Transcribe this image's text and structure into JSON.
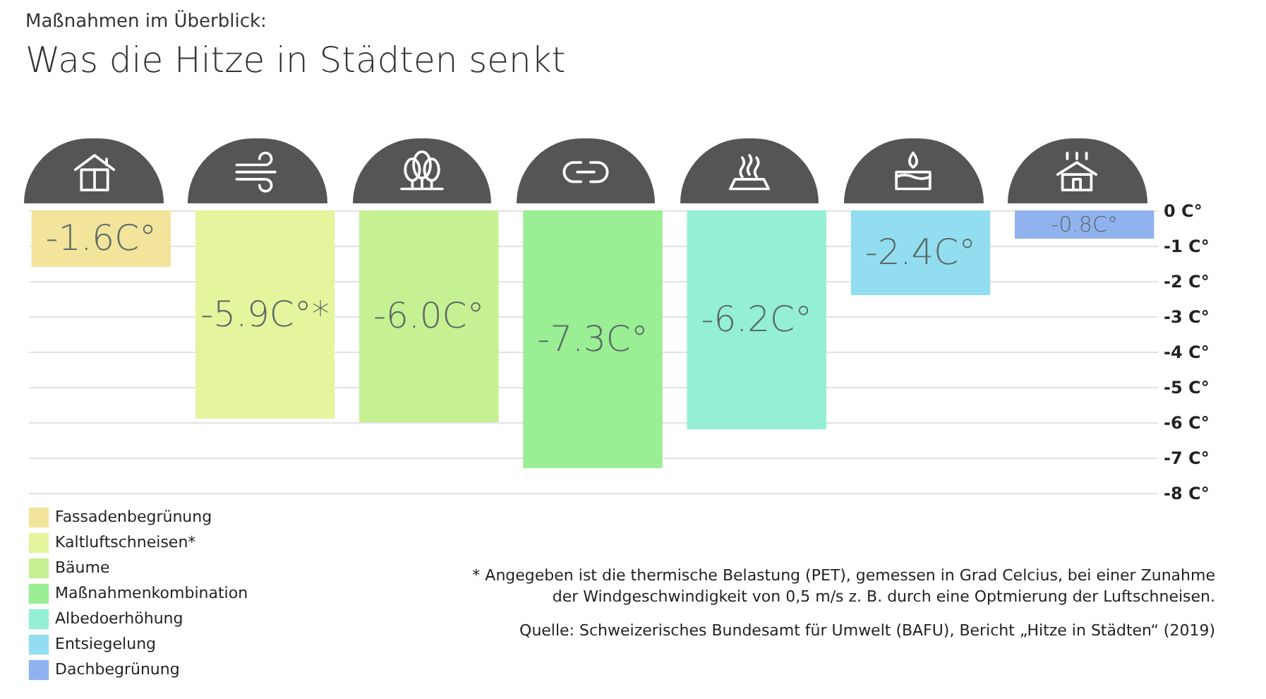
{
  "chart_data": {
    "type": "bar",
    "subtitle": "Maßnahmen im Überblick:",
    "title": "Was die Hitze in Städten senkt",
    "categories": [
      null,
      null,
      null,
      null,
      null,
      null,
      null
    ],
    "series": [
      {
        "name": "Fassadenbegrünung",
        "color": "#f2e49b",
        "values": [
          -1.6,
          null,
          null,
          null,
          null,
          null,
          null
        ],
        "value_labels": [
          "-1.6C°",
          null,
          null,
          null,
          null,
          null,
          null
        ]
      },
      {
        "name": "Kaltluftschneisen*",
        "color": "#e4f59d",
        "values": [
          null,
          -5.9,
          null,
          null,
          null,
          null,
          null
        ],
        "value_labels": [
          null,
          "-5.9C°*",
          null,
          null,
          null,
          null,
          null
        ]
      },
      {
        "name": "Bäume",
        "color": "#c5f192",
        "values": [
          null,
          null,
          -6.0,
          null,
          null,
          null,
          null
        ],
        "value_labels": [
          null,
          null,
          "-6.0C°",
          null,
          null,
          null,
          null
        ]
      },
      {
        "name": "Maßnahmenkombination",
        "color": "#9aee94",
        "values": [
          null,
          null,
          null,
          -7.3,
          null,
          null,
          null
        ],
        "value_labels": [
          null,
          null,
          null,
          "-7.3C°",
          null,
          null,
          null
        ]
      },
      {
        "name": "Albedoerhöhung",
        "color": "#94efd5",
        "values": [
          null,
          null,
          null,
          null,
          -6.2,
          null,
          null
        ],
        "value_labels": [
          null,
          null,
          null,
          null,
          "-6.2C°",
          null,
          null
        ]
      },
      {
        "name": "Entsiegelung",
        "color": "#92def0",
        "values": [
          null,
          null,
          null,
          null,
          null,
          -2.4,
          null
        ],
        "value_labels": [
          null,
          null,
          null,
          null,
          null,
          "-2.4C°",
          null
        ]
      },
      {
        "name": "Dachbegrünung",
        "color": "#90b2ee",
        "values": [
          null,
          null,
          null,
          null,
          null,
          null,
          -0.8
        ],
        "value_labels": [
          null,
          null,
          null,
          null,
          null,
          null,
          "-0.8C°"
        ]
      }
    ],
    "ylim": [
      -8,
      0
    ],
    "yticks": [
      {
        "value": 0,
        "label": "0 C°"
      },
      {
        "value": -1,
        "label": "-1 C°"
      },
      {
        "value": -2,
        "label": "-2 C°"
      },
      {
        "value": -3,
        "label": "-3 C°"
      },
      {
        "value": -4,
        "label": "-4 C°"
      },
      {
        "value": -5,
        "label": "-5 C°"
      },
      {
        "value": -6,
        "label": "-6 C°"
      },
      {
        "value": -7,
        "label": "-7 C°"
      },
      {
        "value": -8,
        "label": "-8 C°"
      }
    ],
    "grid": "y",
    "legend": "bottom left",
    "tick_labels": "y",
    "annotations": [
      "* Angegeben ist die thermische Belastung (PET), gemessen in Grad Celcius, bei einer Zunahme der Windgeschwindigkeit von 0,5 m/s z. B. durch eine Optmierung der Luftschneisen.",
      "Quelle: Schweizerisches Bundesamt für Umwelt (BAFU), Bericht „Hitze in Städten“ (2019)"
    ]
  }
}
